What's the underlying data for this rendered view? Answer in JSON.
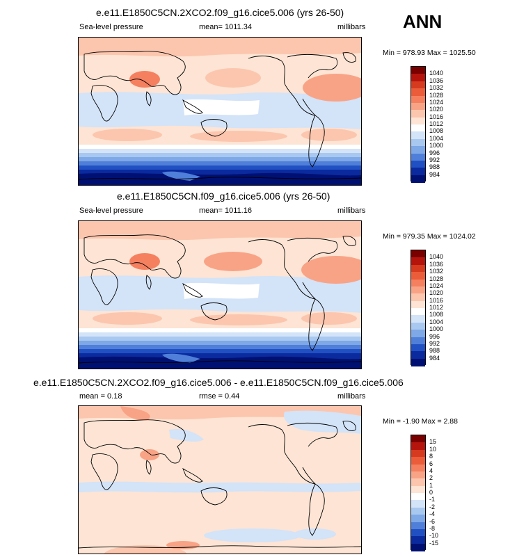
{
  "season": "ANN",
  "panels": [
    {
      "title": "e.e11.E1850C5CN.2XCO2.f09_g16.cice5.006 (yrs 26-50)",
      "left": "Sea-level pressure",
      "center": "mean= 1011.34",
      "right": "millibars",
      "minmax": "Min = 978.93 Max = 1025.50",
      "levels": [
        "1040",
        "1036",
        "1032",
        "1028",
        "1024",
        "1020",
        "1016",
        "1012",
        "1008",
        "1004",
        "1000",
        "996",
        "992",
        "988",
        "984"
      ],
      "colors": [
        "#7a0000",
        "#b5140d",
        "#d63a1f",
        "#eb5c3a",
        "#f5805f",
        "#f9a386",
        "#fcc6ae",
        "#fde4d4",
        "#ffffff",
        "#d3e3f8",
        "#a8c8f0",
        "#7ea8e6",
        "#4f7fd9",
        "#2150c2",
        "#0a2a9e",
        "#001072"
      ]
    },
    {
      "title": "e.e11.E1850C5CN.f09_g16.cice5.006 (yrs 26-50)",
      "left": "Sea-level pressure",
      "center": "mean= 1011.16",
      "right": "millibars",
      "minmax": "Min = 979.35 Max = 1024.02",
      "levels": [
        "1040",
        "1036",
        "1032",
        "1028",
        "1024",
        "1020",
        "1016",
        "1012",
        "1008",
        "1004",
        "1000",
        "996",
        "992",
        "988",
        "984"
      ],
      "colors": [
        "#7a0000",
        "#b5140d",
        "#d63a1f",
        "#eb5c3a",
        "#f5805f",
        "#f9a386",
        "#fcc6ae",
        "#fde4d4",
        "#ffffff",
        "#d3e3f8",
        "#a8c8f0",
        "#7ea8e6",
        "#4f7fd9",
        "#2150c2",
        "#0a2a9e",
        "#001072"
      ]
    },
    {
      "title": "e.e11.E1850C5CN.2XCO2.f09_g16.cice5.006 - e.e11.E1850C5CN.f09_g16.cice5.006",
      "left": "mean =   0.18",
      "center": "rmse =   0.44",
      "right": "millibars",
      "minmax": "Min = -1.90 Max =   2.88",
      "levels": [
        "15",
        "10",
        "8",
        "6",
        "4",
        "2",
        "1",
        "0",
        "-1",
        "-2",
        "-4",
        "-6",
        "-8",
        "-10",
        "-15"
      ],
      "colors": [
        "#7a0000",
        "#b5140d",
        "#d63a1f",
        "#eb5c3a",
        "#f5805f",
        "#f9a386",
        "#fcc6ae",
        "#fde4d4",
        "#ffffff",
        "#d3e3f8",
        "#a8c8f0",
        "#7ea8e6",
        "#4f7fd9",
        "#2150c2",
        "#0a2a9e",
        "#001072"
      ]
    }
  ]
}
